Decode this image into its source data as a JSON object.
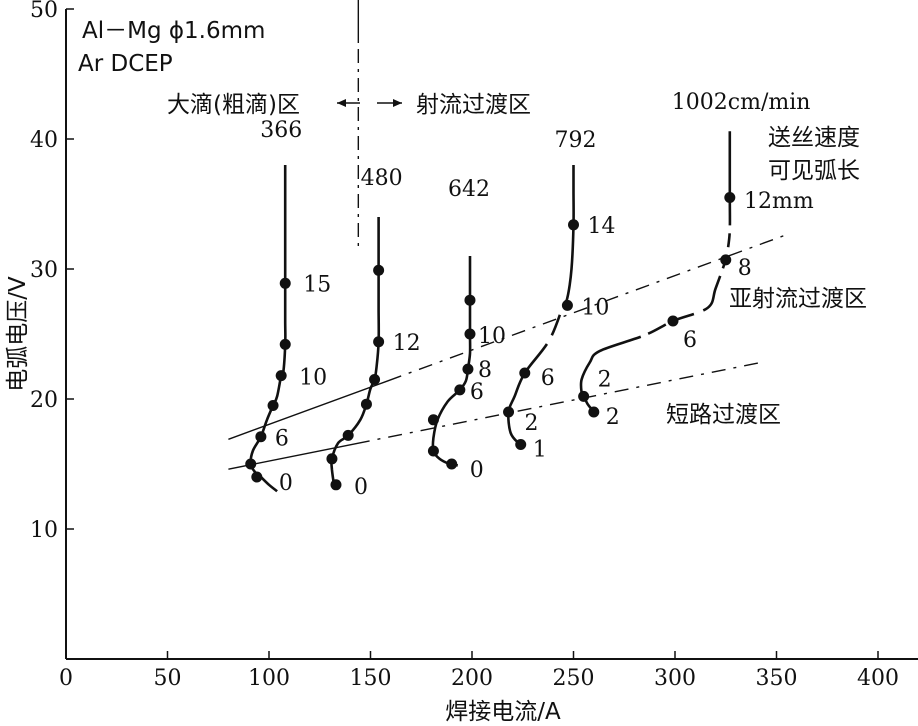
{
  "chart_data": {
    "type": "line",
    "title": "",
    "xlabel": "焊接电流/A",
    "ylabel": "电弧电压/V",
    "xlim": [
      0,
      420
    ],
    "ylim": [
      0,
      50
    ],
    "x_ticks": [
      "0",
      "50",
      "100",
      "150",
      "200",
      "250",
      "300",
      "350",
      "400"
    ],
    "y_ticks": [
      "10",
      "20",
      "30",
      "40",
      "50"
    ],
    "grid": false,
    "annotations": {
      "material": "Al－Mg  ϕ1.6mm",
      "polarity": "Ar DCEP",
      "left_region": "大滴(粗滴)区",
      "right_region": "射流过渡区",
      "legend_wire": "送丝速度",
      "legend_arc": "可见弧长",
      "mesospray_region": "亚射流过渡区",
      "short_circuit_region": "短路过渡区",
      "arc_unit": "12mm"
    },
    "series": [
      {
        "wire_speed": "366",
        "curve": [
          [
            108,
            38
          ],
          [
            108,
            32
          ],
          [
            108,
            29
          ],
          [
            108,
            26
          ],
          [
            108,
            24.2
          ],
          [
            107,
            22
          ],
          [
            106,
            21.8
          ],
          [
            104,
            20.2
          ],
          [
            102,
            19.5
          ],
          [
            99,
            18.4
          ],
          [
            96,
            17.1
          ],
          [
            92,
            16
          ],
          [
            91,
            15
          ],
          [
            93,
            14.4
          ],
          [
            96,
            14
          ],
          [
            100,
            13.4
          ],
          [
            104,
            12.9
          ]
        ],
        "points": [
          [
            108,
            28.9
          ],
          [
            108,
            24.2
          ],
          [
            106,
            21.8
          ],
          [
            102,
            19.5
          ],
          [
            96,
            17.1
          ],
          [
            91,
            15
          ],
          [
            94,
            14
          ]
        ],
        "labels": [
          "15",
          "",
          "10",
          "",
          "6",
          "",
          "0"
        ]
      },
      {
        "wire_speed": "480",
        "curve": [
          [
            154,
            34
          ],
          [
            154,
            31
          ],
          [
            154,
            29.9
          ],
          [
            154,
            27
          ],
          [
            154,
            24.4
          ],
          [
            153,
            22.5
          ],
          [
            152,
            21.5
          ],
          [
            150,
            20.8
          ],
          [
            148,
            19.6
          ],
          [
            145,
            18.4
          ],
          [
            139,
            17.2
          ],
          [
            134,
            16.6
          ],
          [
            131,
            15.4
          ],
          [
            131,
            14.6
          ],
          [
            132,
            13.4
          ]
        ],
        "points": [
          [
            154,
            29.9
          ],
          [
            154,
            24.4
          ],
          [
            152,
            21.5
          ],
          [
            148,
            19.6
          ],
          [
            139,
            17.2
          ],
          [
            131,
            15.4
          ],
          [
            133,
            13.4
          ]
        ],
        "labels": [
          "",
          "12",
          "",
          "",
          "",
          "",
          "0"
        ]
      },
      {
        "wire_speed": "642",
        "curve": [
          [
            199,
            31
          ],
          [
            199,
            27.6
          ],
          [
            199,
            25
          ],
          [
            199,
            23.5
          ],
          [
            198,
            22.3
          ],
          [
            197,
            21.4
          ],
          [
            194,
            20.7
          ],
          [
            188,
            19.8
          ],
          [
            183,
            18.4
          ],
          [
            181,
            17
          ],
          [
            181,
            16
          ],
          [
            184,
            15.4
          ],
          [
            189,
            15
          ],
          [
            193,
            14.9
          ]
        ],
        "points": [
          [
            199,
            27.6
          ],
          [
            199,
            25
          ],
          [
            198,
            22.3
          ],
          [
            194,
            20.7
          ],
          [
            181,
            18.4
          ],
          [
            181,
            16
          ],
          [
            190,
            15
          ]
        ],
        "labels": [
          "",
          "10",
          "8",
          "6",
          "",
          "",
          "0"
        ]
      },
      {
        "wire_speed": "792",
        "curve": [
          [
            250,
            38
          ],
          [
            250,
            36
          ],
          [
            250,
            33.4
          ],
          [
            249,
            30
          ],
          [
            247,
            27.8
          ],
          [
            245,
            27.2
          ],
          [
            238,
            24.5
          ],
          [
            226,
            22
          ],
          [
            221,
            20.2
          ],
          [
            218,
            19
          ],
          [
            219,
            17.4
          ],
          [
            223,
            16.6
          ],
          [
            225,
            16.5
          ]
        ],
        "points": [
          [
            250,
            33.4
          ],
          [
            247,
            27.2
          ],
          [
            226,
            22
          ],
          [
            218,
            19
          ],
          [
            224,
            16.5
          ]
        ],
        "labels": [
          "14",
          "10",
          "6",
          "2",
          "1"
        ]
      },
      {
        "wire_speed": "1002cm/min",
        "curve": [
          [
            327,
            40.6
          ],
          [
            327,
            38
          ],
          [
            327,
            35.5
          ],
          [
            327,
            33
          ],
          [
            326,
            31.5
          ],
          [
            325,
            30.7
          ],
          [
            320,
            28.5
          ],
          [
            316,
            27
          ],
          [
            299,
            26
          ],
          [
            285,
            24.9
          ],
          [
            263,
            23.7
          ],
          [
            258,
            22.8
          ],
          [
            254,
            21.5
          ],
          [
            254,
            20.5
          ],
          [
            255,
            20.2
          ],
          [
            257,
            19.6
          ],
          [
            259,
            19.2
          ],
          [
            260,
            19
          ]
        ],
        "points": [
          [
            327,
            35.5
          ],
          [
            325,
            30.7
          ],
          [
            299,
            26
          ],
          [
            255,
            20.2
          ],
          [
            260,
            19
          ]
        ],
        "labels": [
          "",
          "8",
          "6",
          "2",
          "2"
        ]
      }
    ],
    "boundary_lines": [
      {
        "name": "亚射流过渡区",
        "from": [
          80,
          16.9
        ],
        "to": [
          356,
          32.7
        ]
      },
      {
        "name": "短路过渡区",
        "from": [
          80,
          14.6
        ],
        "to": [
          342,
          22.8
        ]
      },
      {
        "name": "divider",
        "x": 144,
        "from_y": 31.6,
        "to_y": 52
      }
    ]
  }
}
